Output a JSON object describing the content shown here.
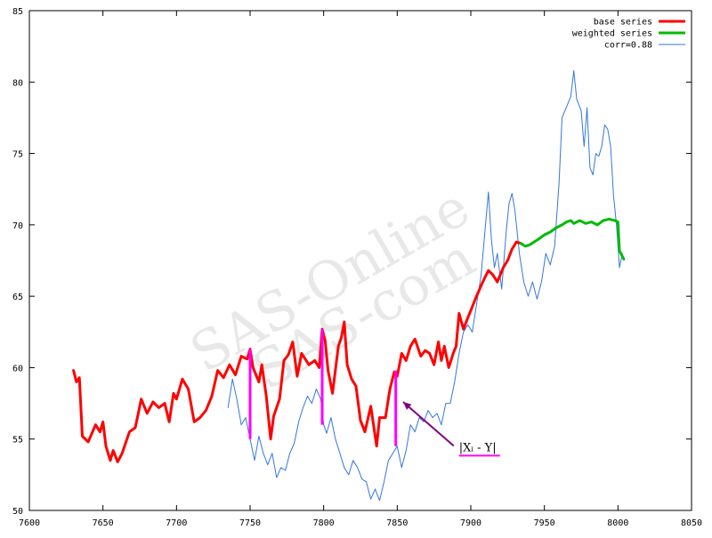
{
  "chart_data": {
    "type": "line",
    "title": "",
    "xlabel": "",
    "ylabel": "",
    "xlim": [
      7600,
      8050
    ],
    "ylim": [
      50,
      85
    ],
    "x_ticks": [
      7600,
      7650,
      7700,
      7750,
      7800,
      7850,
      7900,
      7950,
      8000,
      8050
    ],
    "y_ticks": [
      50,
      55,
      60,
      65,
      70,
      75,
      80,
      85
    ],
    "legend_position": "top-right",
    "grid": false,
    "series": [
      {
        "name": "base series",
        "color": "#ff0000",
        "style": "thick",
        "points": [
          [
            7630,
            59.8
          ],
          [
            7632,
            59.0
          ],
          [
            7634,
            59.3
          ],
          [
            7636,
            55.2
          ],
          [
            7640,
            54.8
          ],
          [
            7645,
            56.0
          ],
          [
            7648,
            55.5
          ],
          [
            7650,
            56.2
          ],
          [
            7652,
            54.5
          ],
          [
            7655,
            53.5
          ],
          [
            7657,
            54.2
          ],
          [
            7660,
            53.4
          ],
          [
            7663,
            54.0
          ],
          [
            7668,
            55.5
          ],
          [
            7672,
            55.8
          ],
          [
            7676,
            57.8
          ],
          [
            7680,
            56.8
          ],
          [
            7684,
            57.6
          ],
          [
            7688,
            57.2
          ],
          [
            7692,
            57.5
          ],
          [
            7695,
            56.2
          ],
          [
            7698,
            58.2
          ],
          [
            7700,
            57.8
          ],
          [
            7704,
            59.2
          ],
          [
            7708,
            58.5
          ],
          [
            7712,
            56.2
          ],
          [
            7716,
            56.5
          ],
          [
            7720,
            57.0
          ],
          [
            7724,
            58.0
          ],
          [
            7728,
            59.8
          ],
          [
            7732,
            59.3
          ],
          [
            7736,
            60.2
          ],
          [
            7740,
            59.5
          ],
          [
            7744,
            60.8
          ],
          [
            7748,
            60.6
          ],
          [
            7750,
            61.3
          ],
          [
            7752,
            60.0
          ],
          [
            7756,
            59.0
          ],
          [
            7758,
            60.2
          ],
          [
            7761,
            58.0
          ],
          [
            7764,
            55.0
          ],
          [
            7766,
            56.6
          ],
          [
            7770,
            57.8
          ],
          [
            7773,
            60.5
          ],
          [
            7776,
            60.9
          ],
          [
            7779,
            61.8
          ],
          [
            7782,
            59.4
          ],
          [
            7785,
            61.0
          ],
          [
            7790,
            60.2
          ],
          [
            7794,
            60.5
          ],
          [
            7797,
            60.0
          ],
          [
            7799,
            62.7
          ],
          [
            7801,
            61.9
          ],
          [
            7803,
            59.8
          ],
          [
            7806,
            58.2
          ],
          [
            7810,
            61.5
          ],
          [
            7812,
            62.1
          ],
          [
            7814,
            63.2
          ],
          [
            7816,
            60.2
          ],
          [
            7819,
            59.2
          ],
          [
            7822,
            58.7
          ],
          [
            7825,
            56.3
          ],
          [
            7828,
            55.5
          ],
          [
            7832,
            57.3
          ],
          [
            7836,
            54.5
          ],
          [
            7838,
            56.5
          ],
          [
            7842,
            56.5
          ],
          [
            7845,
            58.5
          ],
          [
            7848,
            59.7
          ],
          [
            7850,
            59.4
          ],
          [
            7853,
            61.0
          ],
          [
            7856,
            60.5
          ],
          [
            7859,
            61.5
          ],
          [
            7862,
            62.0
          ],
          [
            7866,
            60.8
          ],
          [
            7869,
            61.2
          ],
          [
            7872,
            61.0
          ],
          [
            7875,
            60.2
          ],
          [
            7878,
            61.8
          ],
          [
            7880,
            60.5
          ],
          [
            7882,
            61.5
          ],
          [
            7885,
            60.0
          ],
          [
            7888,
            61.0
          ],
          [
            7890,
            61.5
          ],
          [
            7892,
            63.8
          ],
          [
            7895,
            62.7
          ],
          [
            7898,
            63.5
          ],
          [
            7900,
            64.0
          ],
          [
            7903,
            64.8
          ],
          [
            7906,
            65.5
          ],
          [
            7909,
            66.2
          ],
          [
            7912,
            66.8
          ],
          [
            7915,
            66.5
          ],
          [
            7918,
            66.0
          ],
          [
            7922,
            67.0
          ],
          [
            7925,
            67.5
          ],
          [
            7928,
            68.3
          ],
          [
            7931,
            68.8
          ],
          [
            7934,
            68.7
          ]
        ]
      },
      {
        "name": "weighted series",
        "color": "#00bb00",
        "style": "thick",
        "points": [
          [
            7934,
            68.7
          ],
          [
            7937,
            68.5
          ],
          [
            7940,
            68.6
          ],
          [
            7943,
            68.8
          ],
          [
            7946,
            69.0
          ],
          [
            7950,
            69.3
          ],
          [
            7954,
            69.5
          ],
          [
            7958,
            69.8
          ],
          [
            7962,
            70.0
          ],
          [
            7965,
            70.2
          ],
          [
            7968,
            70.3
          ],
          [
            7970,
            70.1
          ],
          [
            7974,
            70.3
          ],
          [
            7978,
            70.1
          ],
          [
            7982,
            70.2
          ],
          [
            7986,
            70.0
          ],
          [
            7990,
            70.3
          ],
          [
            7994,
            70.4
          ],
          [
            7998,
            70.3
          ],
          [
            8000,
            70.2
          ],
          [
            8001,
            68.2
          ],
          [
            8002,
            68.0
          ],
          [
            8004,
            67.6
          ]
        ]
      },
      {
        "name": "corr=0.88",
        "color": "#3377dd",
        "style": "thin",
        "points": [
          [
            7735,
            57.2
          ],
          [
            7738,
            59.2
          ],
          [
            7741,
            57.8
          ],
          [
            7744,
            56.0
          ],
          [
            7747,
            56.5
          ],
          [
            7750,
            55.0
          ],
          [
            7753,
            53.5
          ],
          [
            7756,
            55.2
          ],
          [
            7759,
            54.0
          ],
          [
            7762,
            53.2
          ],
          [
            7765,
            54.0
          ],
          [
            7768,
            52.3
          ],
          [
            7771,
            53.0
          ],
          [
            7774,
            52.8
          ],
          [
            7777,
            54.0
          ],
          [
            7780,
            54.7
          ],
          [
            7783,
            56.2
          ],
          [
            7786,
            57.2
          ],
          [
            7789,
            58.0
          ],
          [
            7792,
            57.5
          ],
          [
            7795,
            58.5
          ],
          [
            7798,
            57.8
          ],
          [
            7800,
            56.0
          ],
          [
            7802,
            55.4
          ],
          [
            7805,
            56.5
          ],
          [
            7808,
            55.0
          ],
          [
            7811,
            54.0
          ],
          [
            7814,
            53.0
          ],
          [
            7817,
            52.5
          ],
          [
            7820,
            53.5
          ],
          [
            7823,
            53.0
          ],
          [
            7826,
            52.2
          ],
          [
            7829,
            52.0
          ],
          [
            7832,
            50.8
          ],
          [
            7835,
            51.5
          ],
          [
            7838,
            50.7
          ],
          [
            7841,
            52.0
          ],
          [
            7844,
            53.5
          ],
          [
            7847,
            54.0
          ],
          [
            7850,
            54.5
          ],
          [
            7853,
            53.0
          ],
          [
            7856,
            54.2
          ],
          [
            7859,
            56.0
          ],
          [
            7862,
            55.5
          ],
          [
            7865,
            56.5
          ],
          [
            7868,
            56.2
          ],
          [
            7871,
            57.0
          ],
          [
            7874,
            56.5
          ],
          [
            7877,
            56.8
          ],
          [
            7880,
            56.0
          ],
          [
            7883,
            57.5
          ],
          [
            7886,
            57.5
          ],
          [
            7889,
            59.0
          ],
          [
            7892,
            61.0
          ],
          [
            7895,
            62.5
          ],
          [
            7898,
            63.0
          ],
          [
            7901,
            62.5
          ],
          [
            7904,
            64.5
          ],
          [
            7907,
            66.5
          ],
          [
            7910,
            70.0
          ],
          [
            7912,
            72.3
          ],
          [
            7914,
            69.0
          ],
          [
            7916,
            67.0
          ],
          [
            7918,
            68.0
          ],
          [
            7921,
            65.5
          ],
          [
            7924,
            69.5
          ],
          [
            7926,
            71.5
          ],
          [
            7928,
            72.2
          ],
          [
            7930,
            71.0
          ],
          [
            7933,
            68.0
          ],
          [
            7936,
            66.0
          ],
          [
            7939,
            65.0
          ],
          [
            7942,
            66.0
          ],
          [
            7945,
            64.8
          ],
          [
            7948,
            66.0
          ],
          [
            7951,
            68.0
          ],
          [
            7954,
            67.2
          ],
          [
            7957,
            68.5
          ],
          [
            7960,
            73.0
          ],
          [
            7962,
            77.5
          ],
          [
            7964,
            78.0
          ],
          [
            7966,
            78.5
          ],
          [
            7968,
            79.0
          ],
          [
            7970,
            80.8
          ],
          [
            7972,
            78.8
          ],
          [
            7975,
            78.0
          ],
          [
            7977,
            75.5
          ],
          [
            7979,
            78.2
          ],
          [
            7981,
            74.0
          ],
          [
            7983,
            73.5
          ],
          [
            7985,
            75.0
          ],
          [
            7987,
            74.8
          ],
          [
            7989,
            75.5
          ],
          [
            7991,
            77.0
          ],
          [
            7993,
            76.7
          ],
          [
            7995,
            75.5
          ],
          [
            7997,
            72.0
          ],
          [
            7999,
            70.0
          ],
          [
            8001,
            67.0
          ],
          [
            8003,
            68.0
          ]
        ]
      }
    ],
    "difference_markers": {
      "color": "#ff00ff",
      "bars": [
        {
          "x": 7750,
          "y_top": 61.3,
          "y_bottom": 55.0
        },
        {
          "x": 7799,
          "y_top": 62.7,
          "y_bottom": 56.0
        },
        {
          "x": 7849,
          "y_top": 59.8,
          "y_bottom": 54.5
        }
      ]
    },
    "annotation": {
      "label": "|Xᵢ - Y|",
      "arrow_color": "#800080",
      "underline_color": "#ff00ff",
      "anchor_x": 7892,
      "anchor_y": 54.4,
      "arrow_to_x": 7854,
      "arrow_to_y": 57.6
    },
    "watermark_text": [
      "SAS-Online",
      "SAS-com"
    ]
  }
}
